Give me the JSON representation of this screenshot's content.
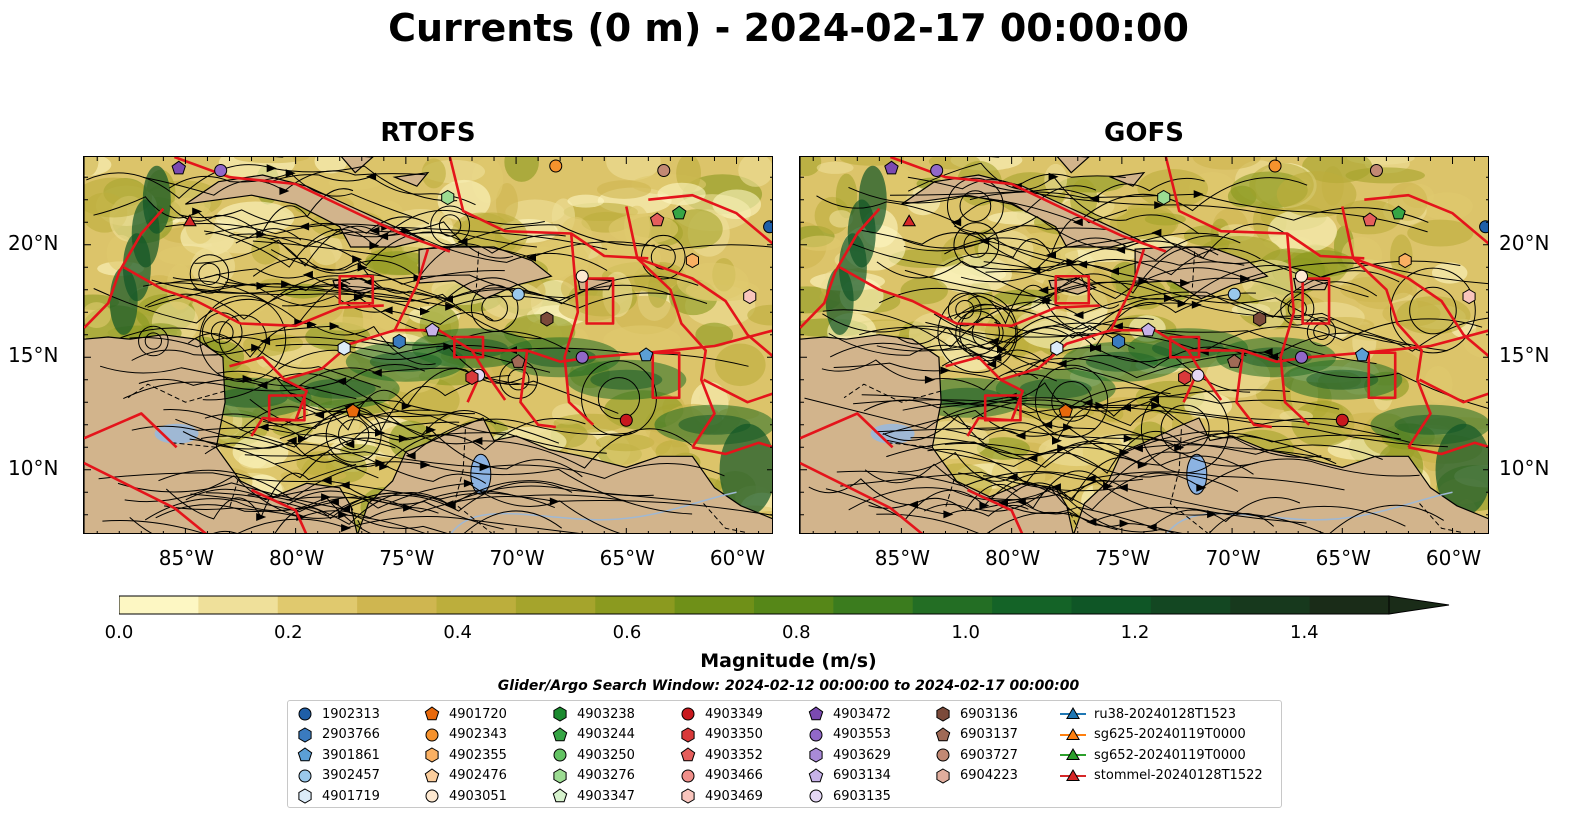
{
  "title": "Currents (0 m) - 2024-02-17 00:00:00",
  "panels": [
    {
      "name": "RTOFS",
      "fill": "#c9b35a"
    },
    {
      "name": "GOFS",
      "fill": "#c9b35a"
    }
  ],
  "map_axes": {
    "lon_labels": [
      "85°W",
      "80°W",
      "75°W",
      "70°W",
      "65°W",
      "60°W"
    ],
    "lat_labels": [
      "20°N",
      "15°N",
      "10°N"
    ],
    "lon_range": [
      -89.6,
      -58.3
    ],
    "lat_range": [
      7.1,
      23.9
    ],
    "lon_ticks": [
      -85,
      -80,
      -75,
      -70,
      -65,
      -60
    ],
    "lat_ticks": [
      20,
      15,
      10
    ]
  },
  "colorbar": {
    "label": "Magnitude (m/s)",
    "tick_labels": [
      "0.0",
      "0.2",
      "0.4",
      "0.6",
      "0.8",
      "1.0",
      "1.2",
      "1.4"
    ],
    "range": [
      0.0,
      1.5
    ],
    "colors": [
      "#fdf7c3",
      "#efe09a",
      "#e0c96e",
      "#cfb650",
      "#bcae3c",
      "#a5a42c",
      "#8b9a1f",
      "#6f9018",
      "#568718",
      "#3b7c1e",
      "#236e24",
      "#146327",
      "#0f5626",
      "#134722",
      "#17391d",
      "#1a2c18"
    ]
  },
  "legend": {
    "title": "Glider/Argo Search Window: 2024-02-12 00:00:00 to 2024-02-17 00:00:00",
    "columns": [
      [
        {
          "label": "1902313",
          "marker": "circle",
          "color": "#1f5fa8"
        },
        {
          "label": "2903766",
          "marker": "hexagon",
          "color": "#3a7bbf"
        },
        {
          "label": "3901861",
          "marker": "pentagon",
          "color": "#5b9fd6"
        },
        {
          "label": "3902457",
          "marker": "circle",
          "color": "#9ac8ec"
        },
        {
          "label": "4901719",
          "marker": "hexagon",
          "color": "#dcecf9"
        }
      ],
      [
        {
          "label": "4901720",
          "marker": "pentagon",
          "color": "#e8690c"
        },
        {
          "label": "4902343",
          "marker": "circle",
          "color": "#f6922d"
        },
        {
          "label": "4902355",
          "marker": "hexagon",
          "color": "#fab062"
        },
        {
          "label": "4902476",
          "marker": "pentagon",
          "color": "#fcce9d"
        },
        {
          "label": "4903051",
          "marker": "circle",
          "color": "#fde8d0"
        }
      ],
      [
        {
          "label": "4903238",
          "marker": "hexagon",
          "color": "#1a8a2e"
        },
        {
          "label": "4903244",
          "marker": "pentagon",
          "color": "#36a545"
        },
        {
          "label": "4903250",
          "marker": "circle",
          "color": "#63c363"
        },
        {
          "label": "4903276",
          "marker": "hexagon",
          "color": "#9cdc92"
        },
        {
          "label": "4903347",
          "marker": "pentagon",
          "color": "#d6f2cd"
        }
      ],
      [
        {
          "label": "4903349",
          "marker": "circle",
          "color": "#c8191e"
        },
        {
          "label": "4903350",
          "marker": "hexagon",
          "color": "#d9393a"
        },
        {
          "label": "4903352",
          "marker": "pentagon",
          "color": "#e55e5c"
        },
        {
          "label": "4903466",
          "marker": "circle",
          "color": "#f08f8a"
        },
        {
          "label": "4903469",
          "marker": "hexagon",
          "color": "#f9c5bd"
        }
      ],
      [
        {
          "label": "4903472",
          "marker": "pentagon",
          "color": "#7b4ab1"
        },
        {
          "label": "4903553",
          "marker": "circle",
          "color": "#9168c8"
        },
        {
          "label": "4903629",
          "marker": "hexagon",
          "color": "#a98ad8"
        },
        {
          "label": "6903134",
          "marker": "pentagon",
          "color": "#c7b2e8"
        },
        {
          "label": "6903135",
          "marker": "circle",
          "color": "#e4d7f5"
        }
      ],
      [
        {
          "label": "6903136",
          "marker": "hexagon",
          "color": "#7b4a3a"
        },
        {
          "label": "6903137",
          "marker": "pentagon",
          "color": "#a06a56"
        },
        {
          "label": "6903727",
          "marker": "circle",
          "color": "#c28974"
        },
        {
          "label": "6904223",
          "marker": "hexagon",
          "color": "#e0ad9d"
        }
      ],
      [
        {
          "label": "ru38-20240128T1523",
          "marker": "triangle-line",
          "color": "#1f77b4"
        },
        {
          "label": "sg625-20240119T0000",
          "marker": "triangle-line",
          "color": "#ff7f0e"
        },
        {
          "label": "sg652-20240119T0000",
          "marker": "triangle-line",
          "color": "#2ca02c"
        },
        {
          "label": "stommel-20240128T1522",
          "marker": "triangle-line",
          "color": "#d62728"
        }
      ]
    ]
  },
  "floats_on_map": [
    {
      "id": "4903472",
      "lon": -85.3,
      "lat": 23.4
    },
    {
      "id": "4903553",
      "lon": -83.4,
      "lat": 23.3
    },
    {
      "id": "4902343",
      "lon": -68.2,
      "lat": 23.5
    },
    {
      "id": "6903727",
      "lon": -63.3,
      "lat": 23.3
    },
    {
      "id": "4903276",
      "lon": -73.1,
      "lat": 22.1
    },
    {
      "id": "4903244",
      "lon": -62.6,
      "lat": 21.4
    },
    {
      "id": "4903352",
      "lon": -63.6,
      "lat": 21.1
    },
    {
      "id": "1902313",
      "lon": -58.5,
      "lat": 20.8
    },
    {
      "id": "4903051",
      "lon": -67.0,
      "lat": 18.6
    },
    {
      "id": "4902355",
      "lon": -62.0,
      "lat": 19.3
    },
    {
      "id": "3902457",
      "lon": -69.9,
      "lat": 17.8
    },
    {
      "id": "4903469",
      "lon": -59.4,
      "lat": 17.7
    },
    {
      "id": "6903136",
      "lon": -68.6,
      "lat": 16.7
    },
    {
      "id": "6903134",
      "lon": -73.8,
      "lat": 16.2
    },
    {
      "id": "2903766",
      "lon": -75.3,
      "lat": 15.7
    },
    {
      "id": "4901719",
      "lon": -77.8,
      "lat": 15.4
    },
    {
      "id": "6903137",
      "lon": -69.9,
      "lat": 14.8
    },
    {
      "id": "6903135",
      "lon": -71.7,
      "lat": 14.2
    },
    {
      "id": "4903350",
      "lon": -72.0,
      "lat": 14.1
    },
    {
      "id": "3901861",
      "lon": -64.1,
      "lat": 15.1
    },
    {
      "id": "4903553",
      "lon": -67.0,
      "lat": 15.0
    },
    {
      "id": "4901720",
      "lon": -77.4,
      "lat": 12.6
    },
    {
      "id": "4903349",
      "lon": -65.0,
      "lat": 12.2
    },
    {
      "id": "stommel-20240128T1522",
      "lon": -84.8,
      "lat": 21.0
    }
  ]
}
